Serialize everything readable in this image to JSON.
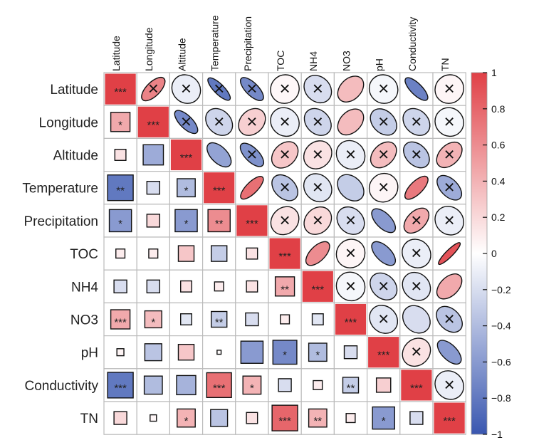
{
  "chart_data": {
    "type": "heatmap",
    "subtype": "correlation matrix (corrplot mixed: lower = squares, upper = ellipses)",
    "variables": [
      "Latitude",
      "Longitude",
      "Altitude",
      "Temperature",
      "Precipitation",
      "TOC",
      "NH4",
      "NO3",
      "pH",
      "Conductivity",
      "TN"
    ],
    "legend_ticks": [
      "1",
      "0.8",
      "0.6",
      "0.4",
      "0.2",
      "0",
      "−0.2",
      "−0.4",
      "−0.6",
      "−0.8",
      "−1"
    ],
    "legend_range": [
      -1,
      1
    ],
    "lower_method": "square",
    "upper_method": "ellipse",
    "cross_marker": "×",
    "colors": {
      "negative": "#3a57b0",
      "mid": "#ffffff",
      "positive": "#e04046",
      "grid": "#bbbbbb",
      "outline": "#111111"
    },
    "matrix": [
      [
        1.0,
        0.65,
        -0.1,
        -0.8,
        -0.7,
        0.04,
        -0.2,
        0.35,
        -0.05,
        -0.75,
        0.05
      ],
      [
        0.45,
        1.0,
        -0.7,
        -0.25,
        0.25,
        -0.1,
        -0.25,
        0.35,
        -0.3,
        -0.25,
        -0.05
      ],
      [
        0.15,
        -0.5,
        1.0,
        -0.55,
        -0.65,
        0.3,
        0.15,
        -0.1,
        0.35,
        -0.35,
        0.4
      ],
      [
        -0.8,
        -0.2,
        -0.4,
        1.0,
        0.75,
        -0.35,
        -0.15,
        -0.3,
        0.05,
        0.7,
        -0.5
      ],
      [
        -0.6,
        0.2,
        -0.6,
        0.6,
        1.0,
        0.15,
        0.2,
        -0.2,
        -0.6,
        0.45,
        -0.1
      ],
      [
        0.1,
        0.1,
        0.3,
        -0.3,
        0.15,
        1.0,
        0.6,
        0.05,
        -0.6,
        -0.1,
        0.9
      ],
      [
        -0.2,
        -0.2,
        0.15,
        0.1,
        0.15,
        0.45,
        1.0,
        -0.05,
        -0.25,
        -0.15,
        0.45
      ],
      [
        0.45,
        0.35,
        -0.15,
        -0.3,
        -0.2,
        0.1,
        -0.15,
        1.0,
        -0.15,
        -0.2,
        -0.35
      ],
      [
        0.06,
        -0.35,
        0.3,
        0.02,
        -0.6,
        -0.7,
        -0.4,
        -0.2,
        1.0,
        0.15,
        -0.6
      ],
      [
        -0.8,
        -0.4,
        -0.45,
        0.75,
        0.4,
        -0.2,
        0.1,
        -0.3,
        0.25,
        1.0,
        -0.1
      ],
      [
        0.2,
        0.05,
        0.4,
        -0.35,
        0.15,
        0.8,
        0.4,
        0.1,
        -0.6,
        -0.2,
        1.0
      ]
    ],
    "significance": [
      [
        "***",
        "",
        "",
        "",
        "",
        "",
        "",
        "",
        "",
        "",
        ""
      ],
      [
        "*",
        "***",
        "",
        "",
        "",
        "",
        "",
        "",
        "",
        "",
        ""
      ],
      [
        "",
        "",
        "***",
        "",
        "",
        "",
        "",
        "",
        "",
        "",
        ""
      ],
      [
        "**",
        "",
        "*",
        "***",
        "",
        "",
        "",
        "",
        "",
        "",
        ""
      ],
      [
        "*",
        "",
        "*",
        "**",
        "***",
        "",
        "",
        "",
        "",
        "",
        ""
      ],
      [
        "",
        "",
        "",
        "",
        "",
        "***",
        "",
        "",
        "",
        "",
        ""
      ],
      [
        "",
        "",
        "",
        "",
        "",
        "**",
        "***",
        "",
        "",
        "",
        ""
      ],
      [
        "***",
        "*",
        "",
        "**",
        "",
        "",
        "",
        "***",
        "",
        "",
        ""
      ],
      [
        "",
        "",
        "",
        "",
        "",
        "*",
        "*",
        "",
        "***",
        "",
        ""
      ],
      [
        "***",
        "",
        "",
        "***",
        "*",
        "",
        "",
        "**",
        "",
        "***",
        ""
      ],
      [
        "",
        "",
        "*",
        "",
        "",
        "***",
        "**",
        "",
        "*",
        "",
        "***"
      ]
    ],
    "crossed_upper": [
      [
        false,
        true,
        true,
        true,
        true,
        true,
        true,
        false,
        true,
        false,
        true
      ],
      [
        false,
        false,
        true,
        true,
        true,
        true,
        true,
        false,
        true,
        true,
        true
      ],
      [
        false,
        false,
        false,
        false,
        true,
        true,
        true,
        true,
        true,
        true,
        true
      ],
      [
        false,
        false,
        false,
        false,
        false,
        true,
        true,
        false,
        true,
        false,
        true
      ],
      [
        false,
        false,
        false,
        false,
        false,
        true,
        true,
        true,
        false,
        true,
        true
      ],
      [
        false,
        false,
        false,
        false,
        false,
        false,
        false,
        true,
        false,
        true,
        false
      ],
      [
        false,
        false,
        false,
        false,
        false,
        false,
        false,
        true,
        true,
        true,
        false
      ],
      [
        false,
        false,
        false,
        false,
        false,
        false,
        false,
        false,
        true,
        false,
        true
      ],
      [
        false,
        false,
        false,
        false,
        false,
        false,
        false,
        false,
        false,
        true,
        false
      ],
      [
        false,
        false,
        false,
        false,
        false,
        false,
        false,
        false,
        false,
        false,
        true
      ],
      [
        false,
        false,
        false,
        false,
        false,
        false,
        false,
        false,
        false,
        false,
        false
      ]
    ]
  }
}
